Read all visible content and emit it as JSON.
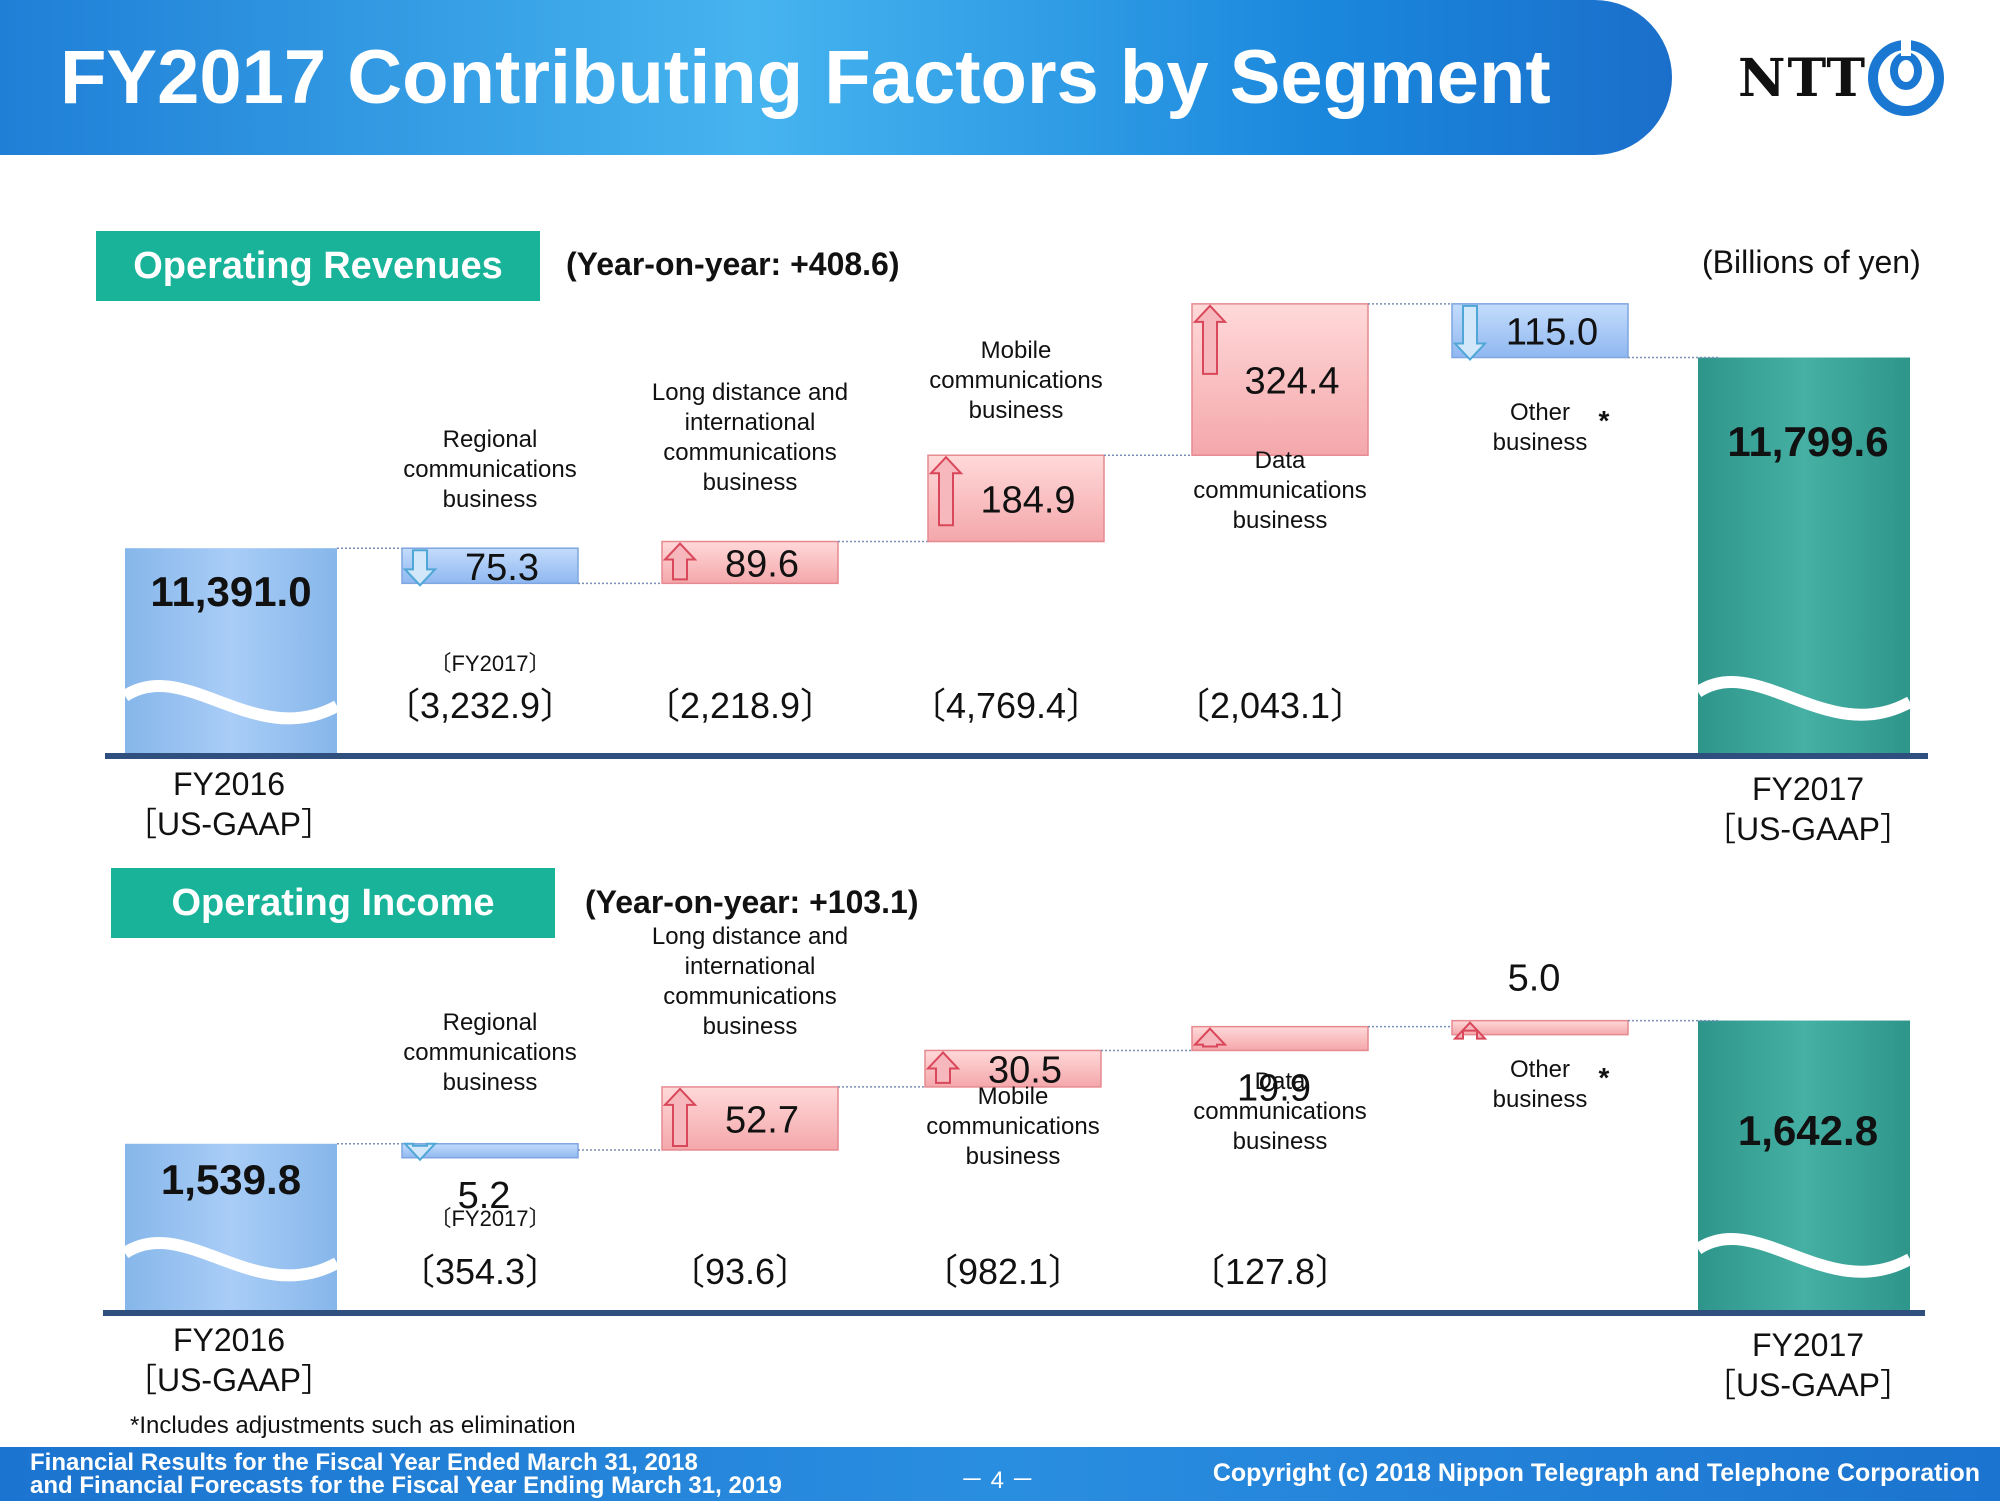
{
  "header": {
    "title": "FY2017 Contributing Factors by Segment"
  },
  "logo": {
    "text": "NTT",
    "icon": "ntt-logo-icon"
  },
  "unit_label": "(Billions of yen)",
  "colors": {
    "start_bar": "#9cc6f4",
    "end_bar": "#3aa69b",
    "increase": "#f9c3c3",
    "decrease": "#9ec4f5",
    "section_label": "#19b39a",
    "axis": "#2f4f7f"
  },
  "chart_data": [
    {
      "type": "bar",
      "title": "Operating Revenues",
      "subtitle": "(Year-on-year: +408.6)",
      "unit": "(Billions of yen)",
      "ylim": [
        10950,
        11880
      ],
      "start": {
        "label": "FY2016",
        "sublabel": "［US-GAAP］",
        "value": 11391.0,
        "value_label": "11,391.0"
      },
      "end": {
        "label": "FY2017",
        "sublabel": "［US-GAAP］",
        "value": 11799.6,
        "value_label": "11,799.6"
      },
      "steps": [
        {
          "category": "Regional communications business",
          "category_lines": [
            "Regional",
            "communications",
            "business"
          ],
          "change": -75.3,
          "change_label": "75.3",
          "fy2017_label": "〔FY2017〕",
          "fy2017": "〔3,232.9〕"
        },
        {
          "category": "Long distance and international communications business",
          "category_lines": [
            "Long distance and",
            "international",
            "communications",
            "business"
          ],
          "change": 89.6,
          "change_label": "89.6",
          "fy2017": "〔2,218.9〕"
        },
        {
          "category": "Mobile communications business",
          "category_lines": [
            "Mobile",
            "communications",
            "business"
          ],
          "change": 184.9,
          "change_label": "184.9",
          "fy2017": "〔4,769.4〕"
        },
        {
          "category": "Data communications business",
          "category_lines": [
            "Data",
            "communications",
            "business"
          ],
          "change": 324.4,
          "change_label": "324.4",
          "fy2017": "〔2,043.1〕"
        },
        {
          "category": "Other business *",
          "category_lines": [
            "Other",
            "business"
          ],
          "asterisk": "*",
          "change": -115.0,
          "change_label": "115.0",
          "fy2017": ""
        }
      ]
    },
    {
      "type": "bar",
      "title": "Operating Income",
      "subtitle": "(Year-on-year: +103.1)",
      "unit": "(Billions of yen)",
      "ylim": [
        1400,
        1670
      ],
      "start": {
        "label": "FY2016",
        "sublabel": "［US-GAAP］",
        "value": 1539.8,
        "value_label": "1,539.8"
      },
      "end": {
        "label": "FY2017",
        "sublabel": "［US-GAAP］",
        "value": 1642.8,
        "value_label": "1,642.8"
      },
      "steps": [
        {
          "category": "Regional communications business",
          "category_lines": [
            "Regional",
            "communications",
            "business"
          ],
          "change": -5.2,
          "change_label": "5.2",
          "fy2017_label": "〔FY2017〕",
          "fy2017": "〔354.3〕"
        },
        {
          "category": "Long distance and international communications business",
          "category_lines": [
            "Long distance and",
            "international",
            "communications",
            "business"
          ],
          "change": 52.7,
          "change_label": "52.7",
          "fy2017": "〔93.6〕"
        },
        {
          "category": "Mobile communications business",
          "category_lines": [
            "Mobile",
            "communications",
            "business"
          ],
          "change": 30.5,
          "change_label": "30.5",
          "fy2017": "〔982.1〕"
        },
        {
          "category": "Data communications business",
          "category_lines": [
            "Data",
            "communications",
            "business"
          ],
          "change": 19.9,
          "change_label": "19.9",
          "fy2017": "〔127.8〕"
        },
        {
          "category": "Other business *",
          "category_lines": [
            "Other",
            "business"
          ],
          "asterisk": "*",
          "change": 5.0,
          "change_label": "5.0",
          "fy2017": ""
        }
      ]
    }
  ],
  "footnote": "*Includes adjustments such as elimination",
  "footer": {
    "left_line1": "Financial Results for the Fiscal Year Ended March 31, 2018",
    "left_line2": "and Financial Forecasts for the Fiscal Year Ending March 31, 2019",
    "page": "－ 4 －",
    "copyright": "Copyright (c) 2018 Nippon Telegraph and Telephone Corporation"
  }
}
